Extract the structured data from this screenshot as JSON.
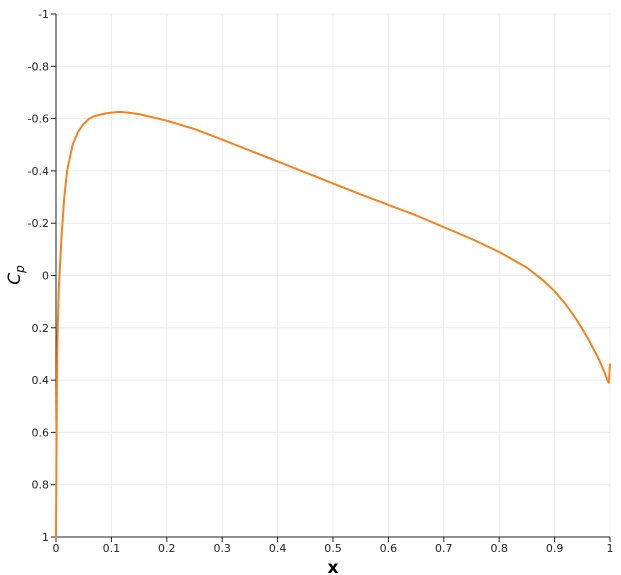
{
  "chart_data": {
    "type": "line",
    "xlabel": "x",
    "ylabel": "C",
    "ylabel_sub": "p",
    "xlim": [
      0,
      1
    ],
    "ylim": [
      1,
      -1
    ],
    "y_inverted": true,
    "grid": true,
    "x_ticks": [
      0,
      0.1,
      0.2,
      0.3,
      0.4,
      0.5,
      0.6,
      0.7,
      0.8,
      0.9,
      1
    ],
    "x_tick_labels": [
      "0",
      "0.1",
      "0.2",
      "0.3",
      "0.4",
      "0.5",
      "0.6",
      "0.7",
      "0.8",
      "0.9",
      "1"
    ],
    "y_ticks": [
      -1,
      -0.8,
      -0.6,
      -0.4,
      -0.2,
      0,
      0.2,
      0.4,
      0.6,
      0.8,
      1
    ],
    "y_tick_labels": [
      "-1",
      "-0.8",
      "-0.6",
      "-0.4",
      "-0.2",
      "0",
      "0.2",
      "0.4",
      "0.6",
      "0.8",
      "1"
    ],
    "series": [
      {
        "color": "#f5821f",
        "x": [
          0.0,
          0.001,
          0.0025,
          0.005,
          0.0075,
          0.01,
          0.015,
          0.02,
          0.03,
          0.04,
          0.05,
          0.06,
          0.07,
          0.08,
          0.09,
          0.1,
          0.11,
          0.12,
          0.13,
          0.15,
          0.2,
          0.25,
          0.3,
          0.35,
          0.4,
          0.45,
          0.5,
          0.55,
          0.6,
          0.65,
          0.7,
          0.75,
          0.8,
          0.85,
          0.88,
          0.9,
          0.92,
          0.94,
          0.96,
          0.98,
          0.99,
          0.995,
          0.998,
          1.0
        ],
        "y": [
          1.0,
          0.6,
          0.25,
          0.05,
          -0.05,
          -0.15,
          -0.3,
          -0.4,
          -0.5,
          -0.55,
          -0.58,
          -0.6,
          -0.61,
          -0.615,
          -0.62,
          -0.623,
          -0.625,
          -0.625,
          -0.623,
          -0.617,
          -0.592,
          -0.56,
          -0.52,
          -0.478,
          -0.436,
          -0.394,
          -0.352,
          -0.31,
          -0.27,
          -0.23,
          -0.185,
          -0.14,
          -0.09,
          -0.03,
          0.02,
          0.06,
          0.11,
          0.17,
          0.24,
          0.32,
          0.37,
          0.4,
          0.41,
          0.34
        ]
      }
    ]
  }
}
